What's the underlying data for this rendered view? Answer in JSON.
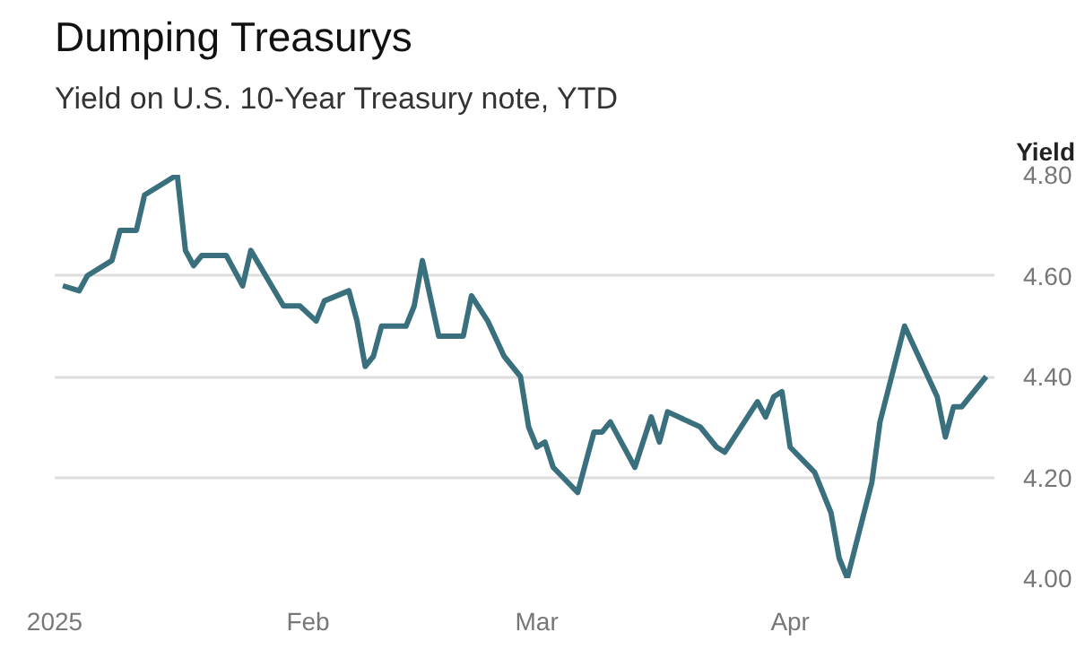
{
  "chart_data": {
    "type": "line",
    "title": "Dumping Treasurys",
    "subtitle": "Yield on U.S. 10-Year Treasury note, YTD",
    "ylabel": "Yield",
    "x": [
      "2025-01-02",
      "2025-01-04",
      "2025-01-05",
      "2025-01-08",
      "2025-01-09",
      "2025-01-11",
      "2025-01-12",
      "2025-01-16",
      "2025-01-17",
      "2025-01-18",
      "2025-01-19",
      "2025-01-22",
      "2025-01-24",
      "2025-01-25",
      "2025-01-29",
      "2025-01-31",
      "2025-02-02",
      "2025-02-03",
      "2025-02-06",
      "2025-02-07",
      "2025-02-08",
      "2025-02-09",
      "2025-02-10",
      "2025-02-13",
      "2025-02-14",
      "2025-02-15",
      "2025-02-17",
      "2025-02-20",
      "2025-02-21",
      "2025-02-23",
      "2025-02-25",
      "2025-02-27",
      "2025-02-28",
      "2025-03-01",
      "2025-03-02",
      "2025-03-03",
      "2025-03-06",
      "2025-03-08",
      "2025-03-09",
      "2025-03-10",
      "2025-03-13",
      "2025-03-15",
      "2025-03-16",
      "2025-03-17",
      "2025-03-21",
      "2025-03-23",
      "2025-03-24",
      "2025-03-28",
      "2025-03-29",
      "2025-03-30",
      "2025-03-31",
      "2025-04-01",
      "2025-04-04",
      "2025-04-06",
      "2025-04-07",
      "2025-04-08",
      "2025-04-11",
      "2025-04-12",
      "2025-04-15",
      "2025-04-19",
      "2025-04-20",
      "2025-04-21",
      "2025-04-22",
      "2025-04-25"
    ],
    "series": [
      {
        "color": "#3a6f7e",
        "values": [
          4.58,
          4.57,
          4.6,
          4.63,
          4.69,
          4.69,
          4.76,
          4.8,
          4.65,
          4.62,
          4.64,
          4.64,
          4.58,
          4.65,
          4.54,
          4.54,
          4.51,
          4.55,
          4.57,
          4.51,
          4.42,
          4.44,
          4.5,
          4.5,
          4.54,
          4.63,
          4.48,
          4.48,
          4.56,
          4.51,
          4.44,
          4.4,
          4.3,
          4.26,
          4.27,
          4.22,
          4.17,
          4.29,
          4.29,
          4.31,
          4.22,
          4.32,
          4.27,
          4.33,
          4.3,
          4.26,
          4.25,
          4.35,
          4.32,
          4.36,
          4.37,
          4.26,
          4.21,
          4.13,
          4.04,
          4.0,
          4.19,
          4.31,
          4.5,
          4.36,
          4.28,
          4.34,
          4.34,
          4.4
        ]
      }
    ],
    "xlim": [
      "2025-01-01",
      "2025-04-26"
    ],
    "xticks": [
      {
        "value": "2025-01-01",
        "label": "2025"
      },
      {
        "value": "2025-02-01",
        "label": "Feb"
      },
      {
        "value": "2025-03-01",
        "label": "Mar"
      },
      {
        "value": "2025-04-01",
        "label": "Apr"
      }
    ],
    "ylim": [
      4.0,
      4.8
    ],
    "yticks": [
      {
        "value": 4.0,
        "label": "4.00"
      },
      {
        "value": 4.2,
        "label": "4.20"
      },
      {
        "value": 4.4,
        "label": "4.40"
      },
      {
        "value": 4.6,
        "label": "4.60"
      },
      {
        "value": 4.8,
        "label": "4.80"
      }
    ],
    "grid": "y",
    "line_style": "solid"
  }
}
